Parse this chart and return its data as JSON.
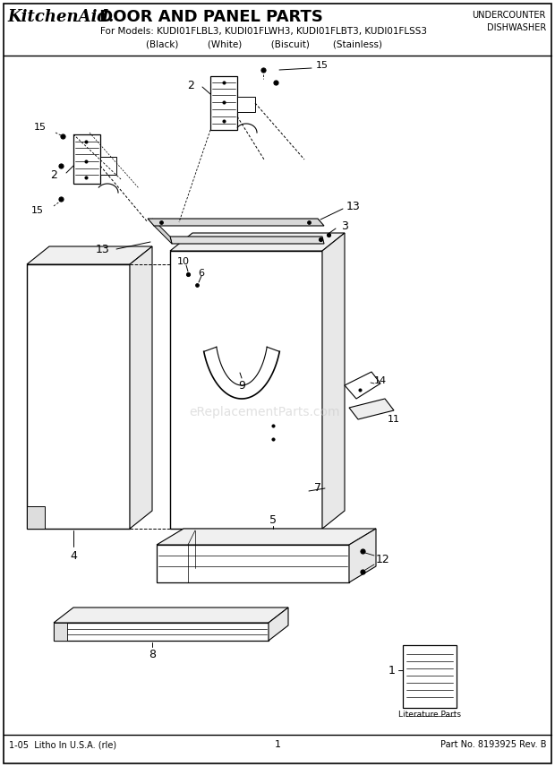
{
  "title_brand": "KitchenAid.",
  "title_main": " DOOR AND PANEL PARTS",
  "subtitle": "For Models: KUDI01FLBL3, KUDI01FLWH3, KUDI01FLBT3, KUDI01FLSS3",
  "subtitle2": "(Black)          (White)          (Biscuit)        (Stainless)",
  "top_right_line1": "UNDERCOUNTER",
  "top_right_line2": "DISHWASHER",
  "footer_left": "1-05  Litho In U.S.A. (rle)",
  "footer_center": "1",
  "footer_right": "Part No. 8193925 Rev. B",
  "watermark": "eReplacementParts.com",
  "bg_color": "#ffffff"
}
